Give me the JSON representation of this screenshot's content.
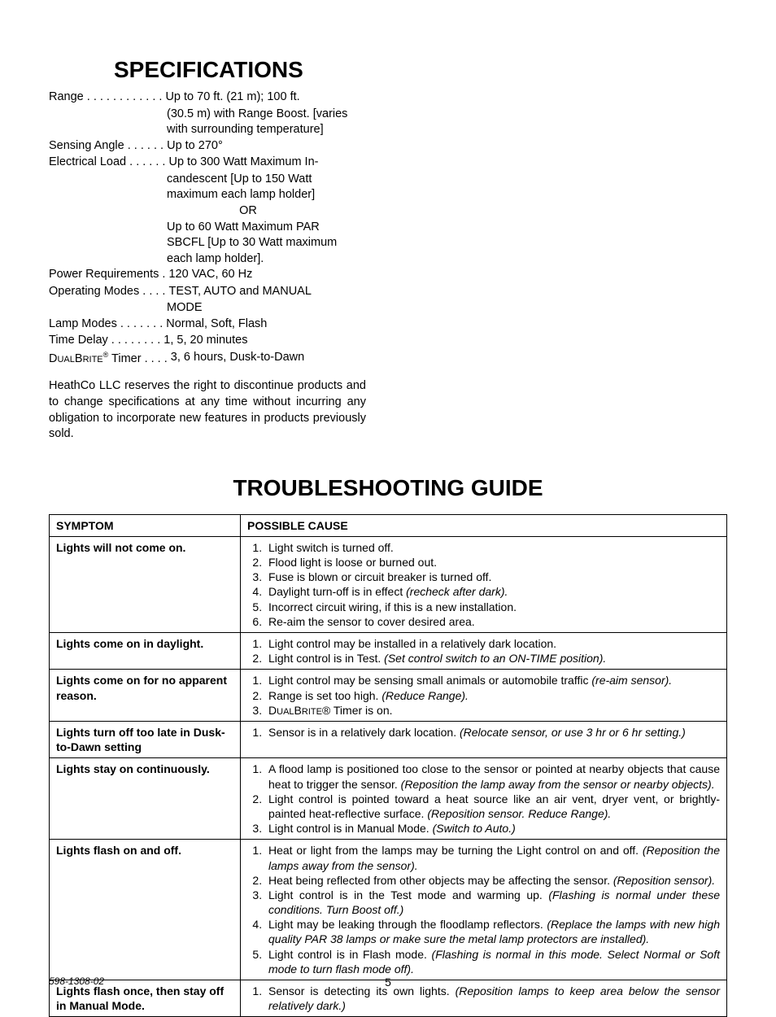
{
  "specifications": {
    "heading": "SPECIFICATIONS",
    "rows": [
      {
        "label": "Range . . . . . . . . . . . .",
        "value": "Up to 70 ft. (21 m); 100 ft.",
        "cont": [
          "(30.5 m) with Range Boost. [varies",
          "with surrounding temperature]"
        ]
      },
      {
        "label": "Sensing Angle . . . . . .",
        "value": "Up to 270°"
      },
      {
        "label": "Electrical Load . . . . . .",
        "value": "Up to 300 Watt Maximum In-",
        "cont": [
          "candescent [Up to 150 Watt",
          "maximum each lamp holder]"
        ],
        "or": true,
        "after_or": [
          "Up to 60 Watt Maximum PAR",
          "SBCFL [Up to 30 Watt maximum",
          "each lamp holder]."
        ]
      },
      {
        "label": "Power Requirements .",
        "value": "120 VAC, 60 Hz"
      },
      {
        "label": "Operating Modes . . . .",
        "value": "TEST, AUTO and MANUAL",
        "cont": [
          "MODE"
        ]
      },
      {
        "label": "Lamp Modes . . . . . . .",
        "value": "Normal, Soft, Flash"
      },
      {
        "label": "Time Delay  . . . . . . . .",
        "value": "1, 5, 20 minutes"
      },
      {
        "label_html": "dualbrite",
        "label_suffix": " Timer . . . .",
        "value": "3, 6 hours, Dusk-to-Dawn"
      }
    ],
    "or_label": "OR",
    "dualbrite_prefix": "D",
    "dualbrite_rest": "UAL",
    "dualbrite_b": "B",
    "dualbrite_rite": "RITE",
    "dualbrite_reg": "®",
    "disclaimer": "HeathCo LLC reserves the right to discontinue products and to change specifications at any time without incurring any obligation to incorporate new features in products previously sold."
  },
  "troubleshooting": {
    "heading": "TROUBLESHOOTING GUIDE",
    "col1": "SYMPTOM",
    "col2": "POSSIBLE CAUSE",
    "rows": [
      {
        "symptom": "Lights will not come on.",
        "causes": [
          [
            {
              "t": "Light switch is turned off."
            }
          ],
          [
            {
              "t": "Flood light is loose or burned out."
            }
          ],
          [
            {
              "t": "Fuse is blown or circuit breaker is turned off."
            }
          ],
          [
            {
              "t": "Daylight turn-off is in effect "
            },
            {
              "t": "(recheck after dark).",
              "i": true
            }
          ],
          [
            {
              "t": "Incorrect circuit wiring, if this is a new installation."
            }
          ],
          [
            {
              "t": "Re-aim the sensor to cover desired area."
            }
          ]
        ]
      },
      {
        "symptom": "Lights come on in daylight.",
        "causes": [
          [
            {
              "t": "Light control may be installed in a relatively dark location."
            }
          ],
          [
            {
              "t": "Light control is in Test. "
            },
            {
              "t": "(Set control switch to an ON-TIME position).",
              "i": true
            }
          ]
        ]
      },
      {
        "symptom": "Lights come on for no apparent reason.",
        "causes": [
          [
            {
              "t": "Light control may be sensing small animals or automobile traffic "
            },
            {
              "t": "(re-aim sensor).",
              "i": true
            }
          ],
          [
            {
              "t": "Range is set too high. "
            },
            {
              "t": "(Reduce Range).",
              "i": true
            }
          ],
          [
            {
              "sc": "DualBrite"
            },
            {
              "t": "® Timer is on."
            }
          ]
        ]
      },
      {
        "symptom": "Lights turn off too late in Dusk-to-Dawn setting",
        "causes": [
          [
            {
              "t": "Sensor is in a relatively dark location. "
            },
            {
              "t": "(Relocate sensor, or use 3 hr or 6 hr setting.)",
              "i": true
            }
          ]
        ]
      },
      {
        "symptom": "Lights stay on continuously.",
        "causes": [
          [
            {
              "t": "A flood lamp is positioned too close to the sensor or pointed at nearby objects that cause heat to trigger the sensor. "
            },
            {
              "t": "(Reposition the lamp away from the sensor or nearby objects).",
              "i": true
            }
          ],
          [
            {
              "t": "Light control is pointed toward a heat source like an air vent, dryer vent, or brightly-painted heat-reflective surface. "
            },
            {
              "t": "(Reposition sensor. Reduce Range).",
              "i": true
            }
          ],
          [
            {
              "t": "Light control is in Manual Mode. "
            },
            {
              "t": "(Switch to Auto.)",
              "i": true
            }
          ]
        ]
      },
      {
        "symptom": "Lights flash on and off.",
        "causes": [
          [
            {
              "t": "Heat or light from the lamps may be turning the Light control on and off. "
            },
            {
              "t": "(Reposition the lamps away from the sensor).",
              "i": true
            }
          ],
          [
            {
              "t": "Heat being reflected from other objects may be affecting the sensor. "
            },
            {
              "t": "(Reposition sensor).",
              "i": true
            }
          ],
          [
            {
              "t": "Light control is in the Test mode and warming up. "
            },
            {
              "t": "(Flashing is normal under these conditions. Turn Boost off.)",
              "i": true
            }
          ],
          [
            {
              "t": "Light may be leaking through the floodlamp reflectors. "
            },
            {
              "t": "(Replace the lamps with new high quality PAR 38 lamps or make sure the metal lamp protectors are installed).",
              "i": true
            }
          ],
          [
            {
              "t": "Light control is in Flash mode. "
            },
            {
              "t": "(Flashing is normal in this mode. Select Normal or Soft mode to turn flash mode off).",
              "i": true
            }
          ]
        ]
      },
      {
        "symptom": "Lights flash once, then stay off in Manual Mode.",
        "causes": [
          [
            {
              "t": "Sensor is detecting its own lights. "
            },
            {
              "t": "(Reposition lamps to keep area below the sensor relatively dark.)",
              "i": true
            }
          ]
        ]
      }
    ]
  },
  "footer": {
    "doc_no": "598-1308-02",
    "page_no": "5"
  }
}
